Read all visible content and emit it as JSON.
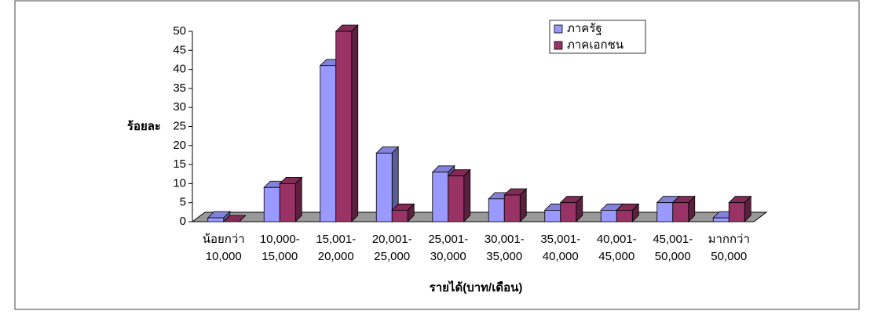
{
  "chart_data": {
    "type": "bar3d",
    "y_label": "ร้อยละ",
    "x_label": "รายได้(บาท/เดือน)",
    "categories": [
      [
        "น้อยกว่า",
        "10,000"
      ],
      [
        "10,000-",
        "15,000"
      ],
      [
        "15,001-",
        "20,000"
      ],
      [
        "20,001-",
        "25,000"
      ],
      [
        "25,001-",
        "30,000"
      ],
      [
        "30,001-",
        "35,000"
      ],
      [
        "35,001-",
        "40,000"
      ],
      [
        "40,001-",
        "45,000"
      ],
      [
        "45,001-",
        "50,000"
      ],
      [
        "มากกว่า",
        "50,000"
      ]
    ],
    "series": [
      {
        "name": "ภาครัฐ",
        "color": "#9999ff",
        "values": [
          1,
          9,
          41,
          18,
          13,
          6,
          3,
          3,
          5,
          1
        ]
      },
      {
        "name": "ภาคเอกชน",
        "color": "#993366",
        "values": [
          0,
          10,
          50,
          3,
          12,
          7,
          5,
          3,
          5,
          5
        ]
      }
    ],
    "ylim": [
      0,
      50
    ],
    "yticks": [
      0,
      5,
      10,
      15,
      20,
      25,
      30,
      35,
      40,
      45,
      50
    ],
    "legend": "top-right",
    "grid": false
  }
}
